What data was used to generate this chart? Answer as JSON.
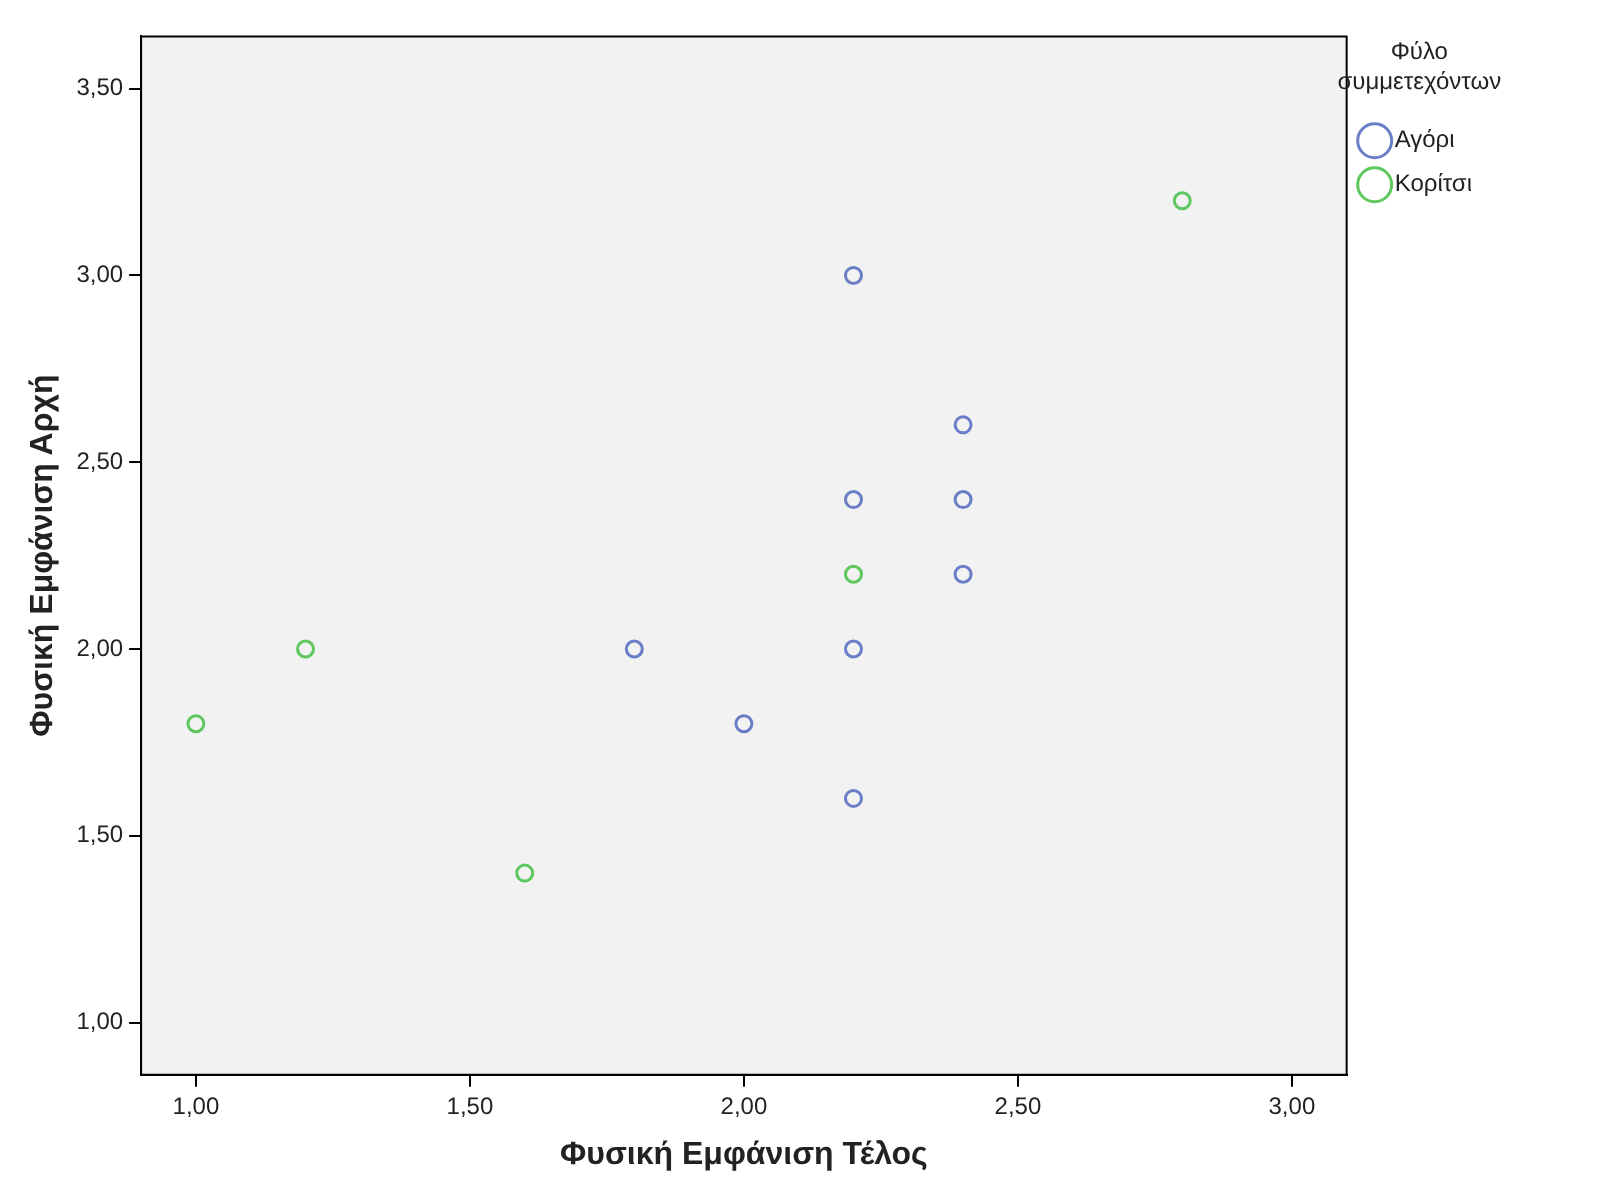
{
  "chart_data": {
    "type": "scatter",
    "xlabel": "Φυσική Εμφάνιση Τέλος",
    "ylabel": "Φυσική Εμφάνιση Αρχή",
    "legend_title": "Φύλο συμμετεχόντων",
    "legend": "top right",
    "marker": "circle",
    "grid": false,
    "xlim": [
      0.9,
      3.1
    ],
    "ylim": [
      0.86,
      3.64
    ],
    "xticks": [
      {
        "value": 1,
        "label": "1,00"
      },
      {
        "value": 1.5,
        "label": "1,50"
      },
      {
        "value": 2,
        "label": "2,00"
      },
      {
        "value": 2.5,
        "label": "2,50"
      },
      {
        "value": 3,
        "label": "3,00"
      }
    ],
    "yticks": [
      {
        "value": 1,
        "label": "1,00"
      },
      {
        "value": 1.5,
        "label": "1,50"
      },
      {
        "value": 2,
        "label": "2,00"
      },
      {
        "value": 2.5,
        "label": "2,50"
      },
      {
        "value": 3,
        "label": "3,00"
      },
      {
        "value": 3.5,
        "label": "3,50"
      }
    ],
    "series": [
      {
        "name": "Αγόρι",
        "color": "#6a7ec8",
        "x": [
          2.2,
          2.4,
          2.2,
          2.4,
          2.4,
          1.8,
          2.2,
          2.0,
          2.2
        ],
        "values": [
          3.0,
          2.6,
          2.4,
          2.4,
          2.2,
          2.0,
          2.0,
          1.8,
          1.6
        ]
      },
      {
        "name": "Κορίτσι",
        "color": "#5ec85e",
        "x": [
          2.8,
          2.2,
          1.2,
          1.0,
          1.6
        ],
        "values": [
          3.2,
          2.2,
          2.0,
          1.8,
          1.4
        ]
      }
    ]
  }
}
